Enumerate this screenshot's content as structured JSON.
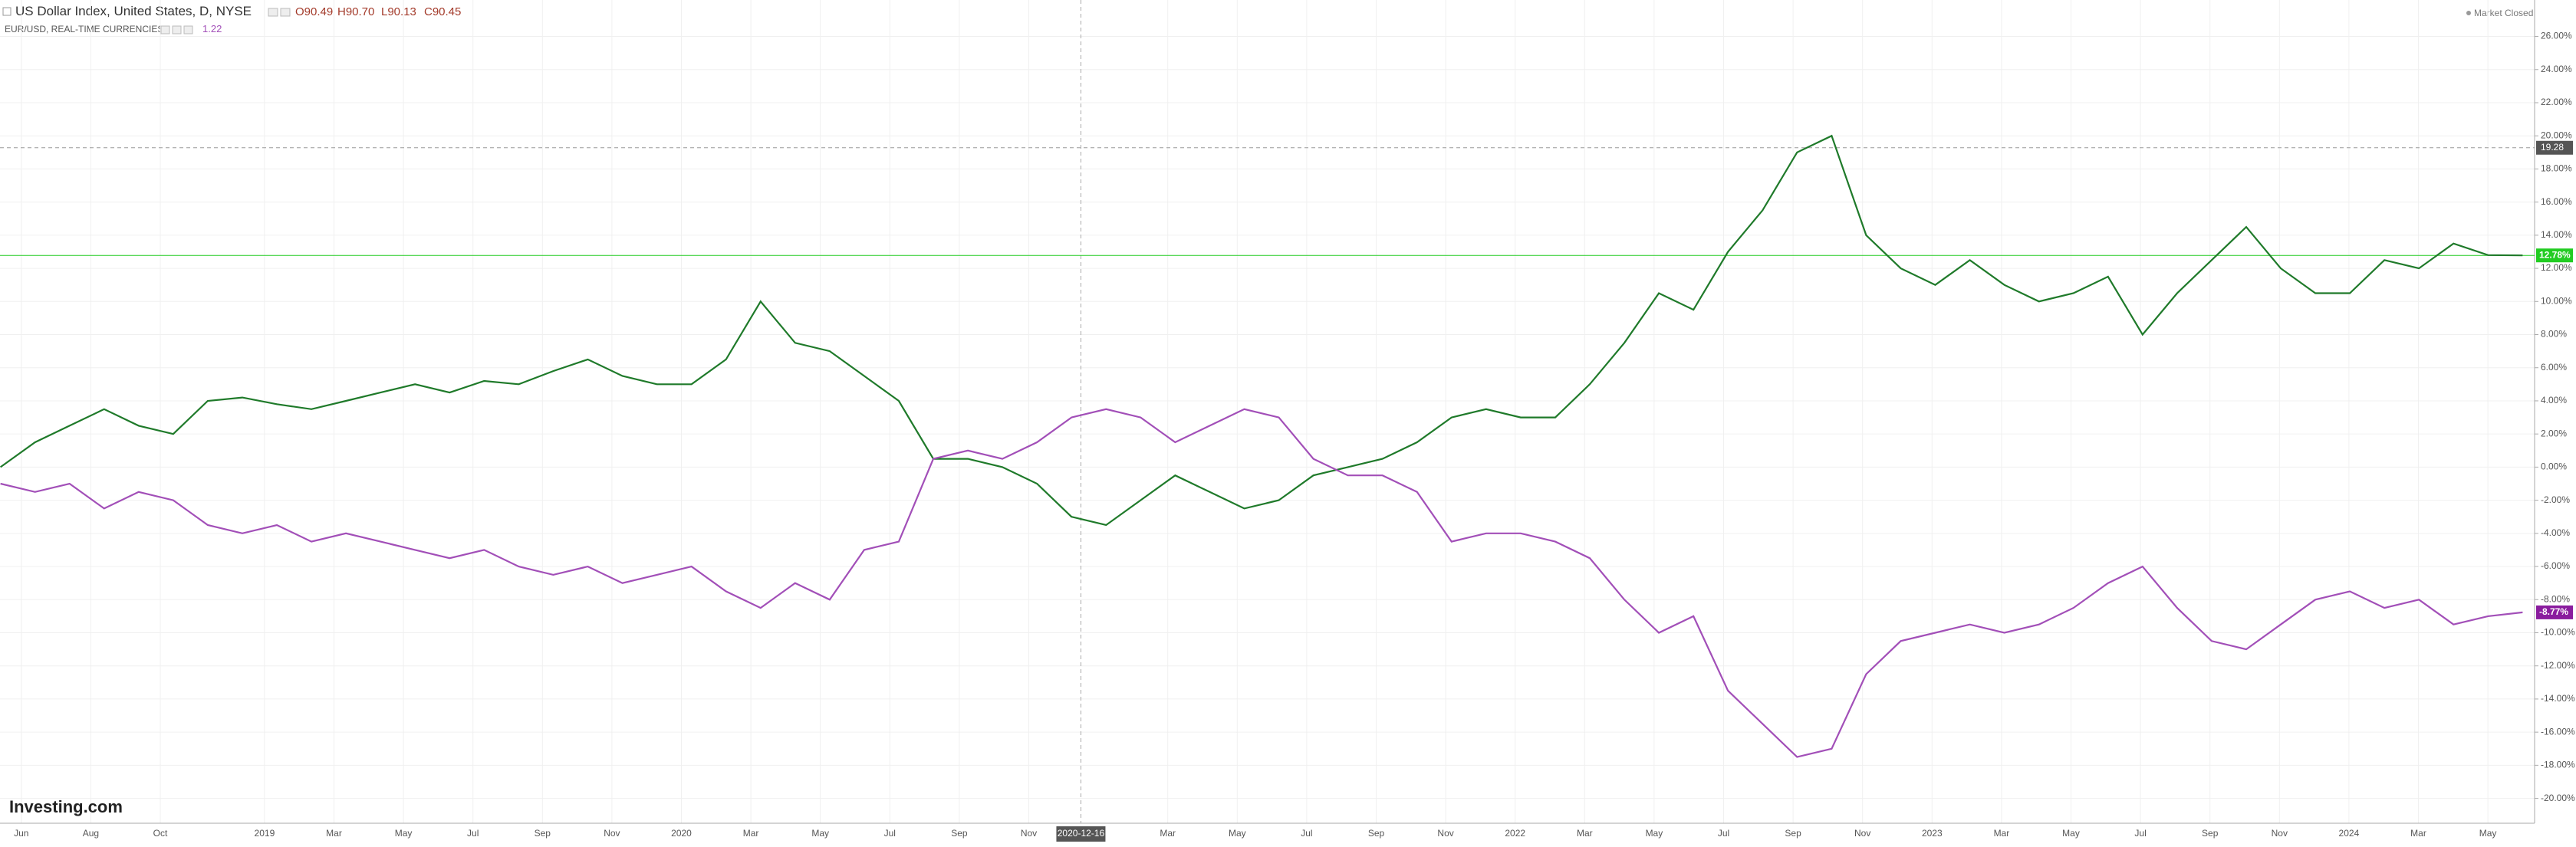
{
  "header": {
    "title": "US Dollar Index, United States, D, NYSE",
    "open": "O90.49",
    "high": "H90.70",
    "low": "L90.13",
    "close": "C90.45",
    "compare": "EUR/USD, REAL-TIME CURRENCIES",
    "compare_value": "1.22",
    "status": "Market Closed",
    "logo": "Investing.com"
  },
  "chart_data": {
    "type": "line",
    "ylim": [
      -21.5,
      28.2
    ],
    "yticks": [
      {
        "value": -20,
        "label": "-20.00%"
      },
      {
        "value": -18,
        "label": "-18.00%"
      },
      {
        "value": -16,
        "label": "-16.00%"
      },
      {
        "value": -14,
        "label": "-14.00%"
      },
      {
        "value": -12,
        "label": "-12.00%"
      },
      {
        "value": -10,
        "label": "-10.00%"
      },
      {
        "value": -8,
        "label": "-8.00%"
      },
      {
        "value": -6,
        "label": "-6.00%"
      },
      {
        "value": -4,
        "label": "-4.00%"
      },
      {
        "value": -2,
        "label": "-2.00%"
      },
      {
        "value": 0,
        "label": "0.00%"
      },
      {
        "value": 2,
        "label": "2.00%"
      },
      {
        "value": 4,
        "label": "4.00%"
      },
      {
        "value": 6,
        "label": "6.00%"
      },
      {
        "value": 8,
        "label": "8.00%"
      },
      {
        "value": 10,
        "label": "10.00%"
      },
      {
        "value": 12,
        "label": "12.00%"
      },
      {
        "value": 14,
        "label": "14.00%"
      },
      {
        "value": 16,
        "label": "16.00%"
      },
      {
        "value": 18,
        "label": "18.00%"
      },
      {
        "value": 20,
        "label": "20.00%"
      },
      {
        "value": 22,
        "label": "22.00%"
      },
      {
        "value": 24,
        "label": "24.00%"
      },
      {
        "value": 26,
        "label": "26.00%"
      }
    ],
    "xticks": [
      "Jun",
      "Aug",
      "Oct",
      "2019",
      "Mar",
      "May",
      "Jul",
      "Sep",
      "Nov",
      "2020",
      "Mar",
      "May",
      "Jul",
      "Sep",
      "Nov",
      "Mar",
      "May",
      "Jul",
      "Sep",
      "Nov",
      "2022",
      "Mar",
      "May",
      "Jul",
      "Sep",
      "Nov",
      "2023",
      "Mar",
      "May",
      "Jul",
      "Sep",
      "Nov",
      "2024",
      "Mar",
      "May"
    ],
    "grid": true,
    "crosshair": {
      "date": "2020-12-16",
      "value": 19.28
    },
    "series": [
      {
        "name": "US Dollar Index",
        "color": "#1f7a2a",
        "last_value_label": "12.78%",
        "label_color": "#22cc22",
        "values": [
          0,
          1.5,
          2.5,
          3.5,
          2.5,
          2.0,
          4.0,
          4.2,
          3.8,
          3.5,
          4.0,
          4.5,
          5.0,
          4.5,
          5.2,
          5.0,
          5.8,
          6.5,
          5.5,
          5.0,
          5.0,
          6.5,
          10.0,
          7.5,
          7.0,
          5.5,
          4.0,
          0.5,
          0.5,
          0,
          -1.0,
          -3.0,
          -3.5,
          -2.0,
          -0.5,
          -1.5,
          -2.5,
          -2.0,
          -0.5,
          0,
          0.5,
          1.5,
          3.0,
          3.5,
          3.0,
          3.0,
          5.0,
          7.5,
          10.5,
          9.5,
          13.0,
          15.5,
          19.0,
          20.0,
          14.0,
          12.0,
          11.0,
          12.5,
          11.0,
          10.0,
          10.5,
          11.5,
          8.0,
          10.5,
          12.5,
          14.5,
          12.0,
          10.5,
          10.5,
          12.5,
          12.0,
          13.5,
          12.8,
          12.78
        ]
      },
      {
        "name": "EUR/USD",
        "color": "#a24fb8",
        "last_value_label": "-8.77%",
        "label_color": "#8a1c9e",
        "values": [
          -1.0,
          -1.5,
          -1.0,
          -2.5,
          -1.5,
          -2.0,
          -3.5,
          -4.0,
          -3.5,
          -4.5,
          -4.0,
          -4.5,
          -5.0,
          -5.5,
          -5.0,
          -6.0,
          -6.5,
          -6.0,
          -7.0,
          -6.5,
          -6.0,
          -7.5,
          -8.5,
          -7.0,
          -8.0,
          -5.0,
          -4.5,
          0.5,
          1.0,
          0.5,
          1.5,
          3.0,
          3.5,
          3.0,
          1.5,
          2.5,
          3.5,
          3.0,
          0.5,
          -0.5,
          -0.5,
          -1.5,
          -4.5,
          -4.0,
          -4.0,
          -4.5,
          -5.5,
          -8.0,
          -10.0,
          -9.0,
          -13.5,
          -15.5,
          -17.5,
          -17.0,
          -12.5,
          -10.5,
          -10.0,
          -9.5,
          -10.0,
          -9.5,
          -8.5,
          -7.0,
          -6.0,
          -8.5,
          -10.5,
          -11.0,
          -9.5,
          -8.0,
          -7.5,
          -8.5,
          -8.0,
          -9.5,
          -9.0,
          -8.77
        ]
      }
    ]
  }
}
